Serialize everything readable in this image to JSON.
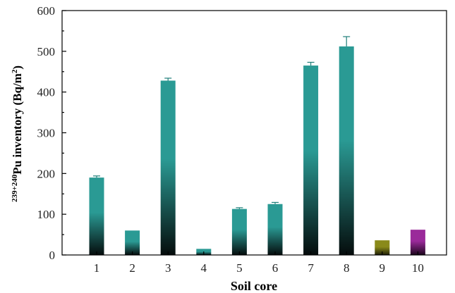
{
  "chart_data": {
    "type": "bar",
    "xlabel": "Soil core",
    "ylabel": {
      "superscript": "239+240",
      "main": "Pu inventory (Bq/m",
      "unit_sup": "2",
      "tail": ")"
    },
    "ylim": [
      0,
      600
    ],
    "yticks": [
      "0",
      "100",
      "200",
      "300",
      "400",
      "500",
      "600"
    ],
    "categories": [
      "1",
      "2",
      "3",
      "4",
      "5",
      "6",
      "7",
      "8",
      "9",
      "10"
    ],
    "values": [
      190,
      60,
      428,
      15,
      113,
      125,
      465,
      512,
      36,
      62
    ],
    "errors": [
      4,
      0,
      6,
      0,
      3,
      4,
      8,
      24,
      0,
      0
    ],
    "colors": {
      "teal_top": "#2a9a94",
      "teal_bottom": "#050c0c",
      "olive_top": "#8a8a1a",
      "olive_bottom": "#1e1e06",
      "purple_top": "#9a2a9a",
      "purple_bottom": "#1c061c"
    },
    "bar_styles": [
      "teal",
      "teal",
      "teal",
      "teal",
      "teal",
      "teal",
      "teal",
      "teal",
      "olive",
      "purple"
    ]
  }
}
